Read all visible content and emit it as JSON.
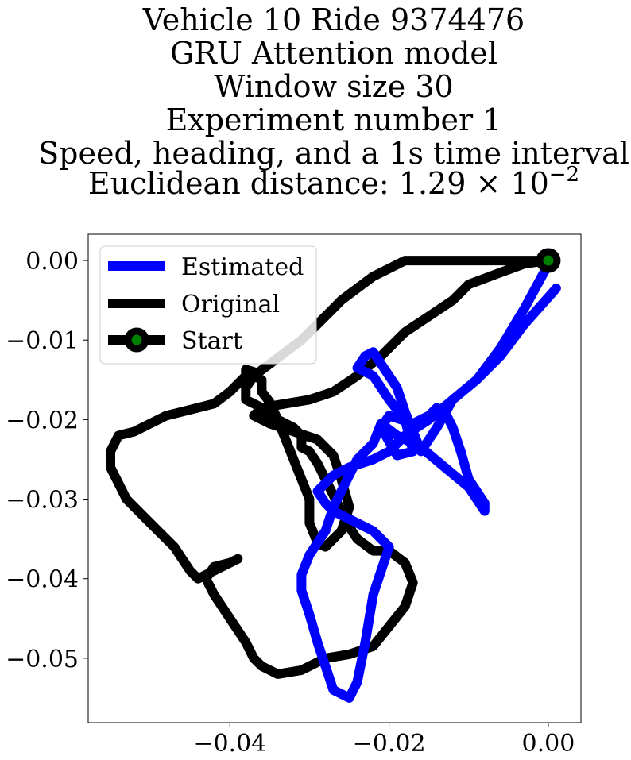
{
  "chart_data": {
    "type": "line",
    "title_lines": [
      "Vehicle 10 Ride 9374476",
      "GRU Attention model",
      "Window size 30",
      "Experiment number 1",
      "Speed, heading, and a 1s time interval"
    ],
    "title_metric": {
      "prefix": "Euclidean distance: ",
      "mantissa": "1.29",
      "base": "10",
      "exponent": "−2"
    },
    "xlabel": "",
    "ylabel": "",
    "xlim": [
      -0.0578,
      0.0041
    ],
    "ylim": [
      -0.0581,
      0.0033
    ],
    "xticks": [
      -0.04,
      -0.02,
      0.0
    ],
    "xtick_labels": [
      "−0.04",
      "−0.02",
      "0.00"
    ],
    "yticks": [
      0.0,
      -0.01,
      -0.02,
      -0.03,
      -0.04,
      -0.05
    ],
    "ytick_labels": [
      "0.00",
      "−0.01",
      "−0.02",
      "−0.03",
      "−0.04",
      "−0.05"
    ],
    "grid": false,
    "legend": {
      "position": "top-left",
      "entries": [
        {
          "label": "Estimated",
          "color": "#0000ff",
          "style": "line"
        },
        {
          "label": "Original",
          "color": "#000000",
          "style": "line"
        },
        {
          "label": "Start",
          "color": "#000000",
          "marker_color": "#008000",
          "style": "line-marker"
        }
      ]
    },
    "series": [
      {
        "name": "Original",
        "color": "#000000",
        "x": [
          0.0,
          -0.003,
          -0.006,
          -0.01,
          -0.012,
          -0.015,
          -0.018,
          -0.021,
          -0.024,
          -0.027,
          -0.03,
          -0.033,
          -0.036,
          -0.037,
          -0.035,
          -0.032,
          -0.029,
          -0.027,
          -0.026,
          -0.025,
          -0.026,
          -0.028,
          -0.029,
          -0.03,
          -0.03,
          -0.031,
          -0.032,
          -0.033,
          -0.034,
          -0.035,
          -0.036,
          -0.036,
          -0.037,
          -0.037,
          -0.038,
          -0.038,
          -0.039,
          -0.04,
          -0.042,
          -0.044,
          -0.046,
          -0.048,
          -0.05,
          -0.052,
          -0.054,
          -0.055,
          -0.055,
          -0.054,
          -0.053,
          -0.051,
          -0.049,
          -0.047,
          -0.046,
          -0.045,
          -0.044,
          -0.042,
          -0.04,
          -0.039,
          -0.04,
          -0.042,
          -0.043,
          -0.042,
          -0.04,
          -0.038,
          -0.037,
          -0.036,
          -0.034,
          -0.031,
          -0.028,
          -0.025,
          -0.022,
          -0.02,
          -0.018,
          -0.017,
          -0.018,
          -0.02,
          -0.022,
          -0.024,
          -0.025,
          -0.026,
          -0.027,
          -0.028,
          -0.029,
          -0.03,
          -0.031,
          -0.031,
          -0.032,
          -0.033,
          -0.034,
          -0.035,
          -0.036,
          -0.038,
          -0.038,
          -0.037,
          -0.035,
          -0.033,
          -0.031,
          -0.03,
          -0.029,
          -0.028,
          -0.027,
          -0.026,
          -0.024,
          -0.022,
          -0.02,
          -0.018,
          -0.016,
          -0.014,
          -0.012,
          -0.01,
          -0.008,
          -0.006,
          -0.004,
          -0.002,
          0.0
        ],
        "y": [
          0.0,
          -0.0004,
          -0.0015,
          -0.003,
          -0.005,
          -0.007,
          -0.009,
          -0.012,
          -0.0145,
          -0.0165,
          -0.0175,
          -0.018,
          -0.0185,
          -0.0195,
          -0.0205,
          -0.0215,
          -0.0225,
          -0.0245,
          -0.0275,
          -0.031,
          -0.034,
          -0.036,
          -0.0355,
          -0.033,
          -0.03,
          -0.0275,
          -0.025,
          -0.0225,
          -0.02,
          -0.0178,
          -0.0165,
          -0.015,
          -0.0145,
          -0.014,
          -0.0137,
          -0.0145,
          -0.0155,
          -0.0165,
          -0.018,
          -0.0185,
          -0.019,
          -0.0195,
          -0.0205,
          -0.0215,
          -0.022,
          -0.024,
          -0.026,
          -0.028,
          -0.03,
          -0.032,
          -0.034,
          -0.036,
          -0.0375,
          -0.039,
          -0.04,
          -0.039,
          -0.038,
          -0.0375,
          -0.038,
          -0.0385,
          -0.04,
          -0.042,
          -0.045,
          -0.048,
          -0.05,
          -0.051,
          -0.052,
          -0.0515,
          -0.05,
          -0.0495,
          -0.0485,
          -0.046,
          -0.0435,
          -0.0405,
          -0.038,
          -0.0365,
          -0.0365,
          -0.035,
          -0.0335,
          -0.0315,
          -0.0295,
          -0.0275,
          -0.0255,
          -0.024,
          -0.0235,
          -0.022,
          -0.021,
          -0.0205,
          -0.02,
          -0.0195,
          -0.0185,
          -0.0175,
          -0.016,
          -0.0145,
          -0.013,
          -0.0115,
          -0.01,
          -0.009,
          -0.008,
          -0.007,
          -0.006,
          -0.005,
          -0.0035,
          -0.002,
          -0.001,
          0.0,
          0.0,
          0.0,
          0.0,
          0.0,
          0.0,
          0.0,
          0.0,
          0.0,
          0.0
        ]
      },
      {
        "name": "Estimated",
        "color": "#0000ff",
        "x": [
          0.0,
          -0.003,
          -0.006,
          -0.009,
          -0.012,
          -0.014,
          -0.016,
          -0.017,
          -0.018,
          -0.019,
          -0.02,
          -0.021,
          -0.022,
          -0.023,
          -0.024,
          -0.022,
          -0.02,
          -0.018,
          -0.017,
          -0.019,
          -0.021,
          -0.02,
          -0.017,
          -0.015,
          -0.014,
          -0.013,
          -0.012,
          -0.011,
          -0.01,
          -0.008,
          -0.008,
          -0.01,
          -0.013,
          -0.016,
          -0.019,
          -0.021,
          -0.022,
          -0.024,
          -0.025,
          -0.026,
          -0.027,
          -0.028,
          -0.03,
          -0.031,
          -0.031,
          -0.03,
          -0.029,
          -0.028,
          -0.027,
          -0.025,
          -0.024,
          -0.023,
          -0.022,
          -0.021,
          -0.02,
          -0.022,
          -0.025,
          -0.027,
          -0.028,
          -0.029,
          -0.028,
          -0.027,
          -0.025,
          -0.022,
          -0.02,
          -0.018,
          -0.015,
          -0.012,
          -0.009,
          -0.006,
          -0.003,
          0.001
        ],
        "y": [
          -0.0005,
          -0.006,
          -0.011,
          -0.015,
          -0.0175,
          -0.021,
          -0.024,
          -0.0215,
          -0.019,
          -0.016,
          -0.0145,
          -0.013,
          -0.0115,
          -0.012,
          -0.0135,
          -0.0145,
          -0.0175,
          -0.02,
          -0.024,
          -0.0245,
          -0.021,
          -0.0195,
          -0.0205,
          -0.0195,
          -0.0185,
          -0.019,
          -0.021,
          -0.024,
          -0.0275,
          -0.0305,
          -0.0315,
          -0.0285,
          -0.026,
          -0.0235,
          -0.022,
          -0.0205,
          -0.023,
          -0.025,
          -0.027,
          -0.029,
          -0.031,
          -0.034,
          -0.037,
          -0.0395,
          -0.0415,
          -0.0445,
          -0.048,
          -0.051,
          -0.054,
          -0.055,
          -0.053,
          -0.048,
          -0.042,
          -0.039,
          -0.036,
          -0.034,
          -0.0325,
          -0.0315,
          -0.0305,
          -0.029,
          -0.028,
          -0.027,
          -0.026,
          -0.025,
          -0.024,
          -0.022,
          -0.02,
          -0.0175,
          -0.015,
          -0.012,
          -0.008,
          -0.0035
        ]
      }
    ],
    "start_point": {
      "x": 0.0,
      "y": 0.0,
      "edge_color": "#000000",
      "face_color": "#008000"
    }
  }
}
